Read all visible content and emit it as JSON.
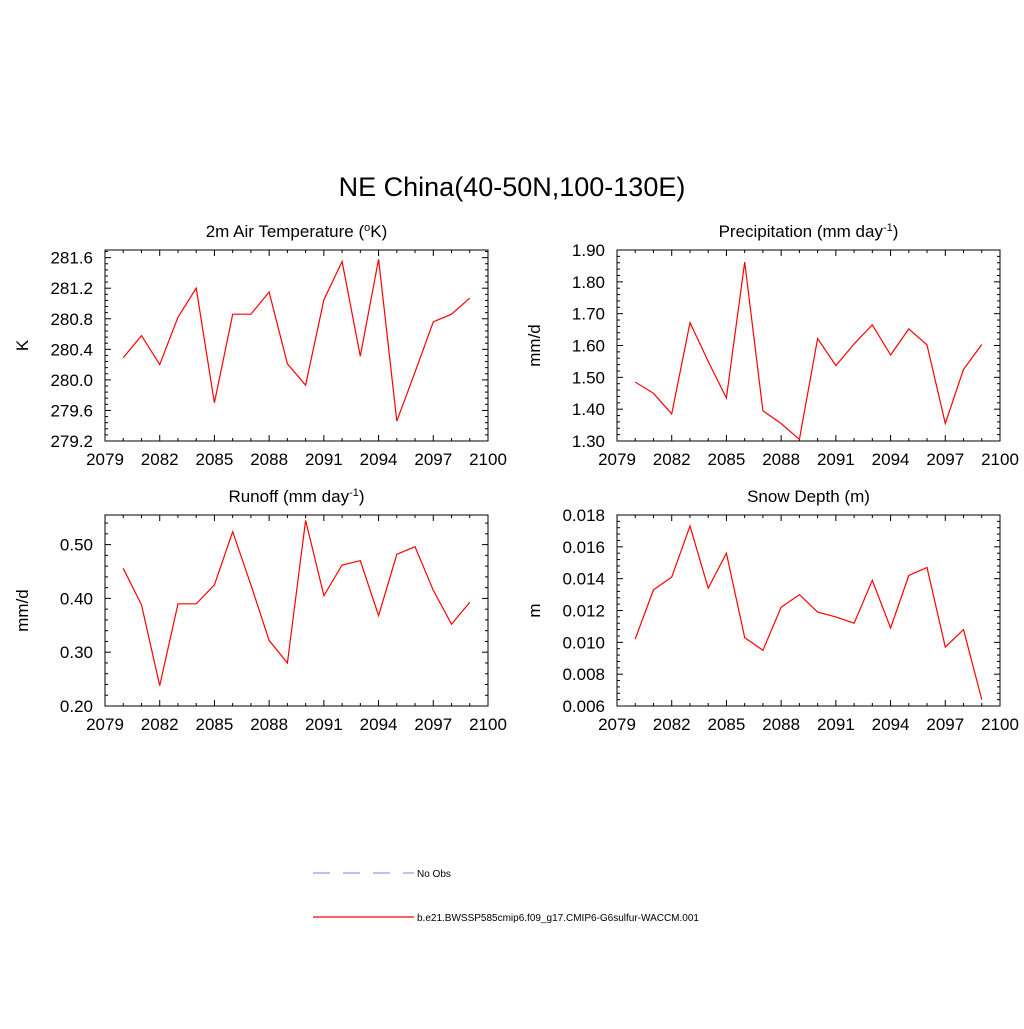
{
  "page_title": "NE China(40-50N,100-130E)",
  "colors": {
    "model_line": "#ff0000",
    "obs_line": "#9999ee",
    "axis": "#000000"
  },
  "legend": {
    "obs_label": "No Obs",
    "model_label": "b.e21.BWSSP585cmip6.f09_g17.CMIP6-G6sulfur-WACCM.001"
  },
  "chart_data": [
    {
      "type": "line",
      "title": "2m Air Temperature (",
      "title_sup": "o",
      "title_tail": "K)",
      "ylabel": "K",
      "xlim": [
        2079,
        2100
      ],
      "ylim": [
        279.2,
        281.7
      ],
      "xticks": [
        2079,
        2082,
        2085,
        2088,
        2091,
        2094,
        2097,
        2100
      ],
      "yticks": [
        "279.2",
        "279.6",
        "280.0",
        "280.4",
        "280.8",
        "281.2",
        "281.6"
      ],
      "x": [
        2080,
        2081,
        2082,
        2083,
        2084,
        2085,
        2086,
        2087,
        2088,
        2089,
        2090,
        2091,
        2092,
        2093,
        2094,
        2095,
        2096,
        2097,
        2098,
        2099
      ],
      "values": [
        280.29,
        280.58,
        280.2,
        280.82,
        281.2,
        279.7,
        280.86,
        280.86,
        281.15,
        280.21,
        279.93,
        281.05,
        281.55,
        280.31,
        281.58,
        279.46,
        280.1,
        280.76,
        280.86,
        281.07
      ]
    },
    {
      "type": "line",
      "title": "Precipitation (mm day",
      "title_sup": "-1",
      "title_tail": ")",
      "ylabel": "mm/d",
      "xlim": [
        2079,
        2100
      ],
      "ylim": [
        1.3,
        1.9
      ],
      "xticks": [
        2079,
        2082,
        2085,
        2088,
        2091,
        2094,
        2097,
        2100
      ],
      "yticks": [
        "1.30",
        "1.40",
        "1.50",
        "1.60",
        "1.70",
        "1.80",
        "1.90"
      ],
      "x": [
        2080,
        2081,
        2082,
        2083,
        2084,
        2085,
        2086,
        2087,
        2088,
        2089,
        2090,
        2091,
        2092,
        2093,
        2094,
        2095,
        2096,
        2097,
        2098,
        2099
      ],
      "values": [
        1.485,
        1.45,
        1.385,
        1.672,
        1.55,
        1.435,
        1.862,
        1.395,
        1.355,
        1.305,
        1.622,
        1.537,
        1.605,
        1.665,
        1.57,
        1.652,
        1.602,
        1.355,
        1.525,
        1.603
      ]
    },
    {
      "type": "line",
      "title": "Runoff (mm day",
      "title_sup": "-1",
      "title_tail": ")",
      "ylabel": "mm/d",
      "xlim": [
        2079,
        2100
      ],
      "ylim": [
        0.2,
        0.555
      ],
      "xticks": [
        2079,
        2082,
        2085,
        2088,
        2091,
        2094,
        2097,
        2100
      ],
      "yticks": [
        "0.20",
        "0.30",
        "0.40",
        "0.50"
      ],
      "x": [
        2080,
        2081,
        2082,
        2083,
        2084,
        2085,
        2086,
        2087,
        2088,
        2089,
        2090,
        2091,
        2092,
        2093,
        2094,
        2095,
        2096,
        2097,
        2098,
        2099
      ],
      "values": [
        0.456,
        0.388,
        0.238,
        0.39,
        0.39,
        0.425,
        0.524,
        0.425,
        0.322,
        0.28,
        0.545,
        0.405,
        0.462,
        0.47,
        0.368,
        0.482,
        0.496,
        0.415,
        0.352,
        0.393
      ]
    },
    {
      "type": "line",
      "title": "Snow Depth (m)",
      "title_sup": "",
      "title_tail": "",
      "ylabel": "m",
      "xlim": [
        2079,
        2100
      ],
      "ylim": [
        0.006,
        0.018
      ],
      "xticks": [
        2079,
        2082,
        2085,
        2088,
        2091,
        2094,
        2097,
        2100
      ],
      "yticks": [
        "0.006",
        "0.008",
        "0.010",
        "0.012",
        "0.014",
        "0.016",
        "0.018"
      ],
      "x": [
        2080,
        2081,
        2082,
        2083,
        2084,
        2085,
        2086,
        2087,
        2088,
        2089,
        2090,
        2091,
        2092,
        2093,
        2094,
        2095,
        2096,
        2097,
        2098,
        2099
      ],
      "values": [
        0.0102,
        0.0133,
        0.0141,
        0.0173,
        0.0134,
        0.0156,
        0.0103,
        0.0095,
        0.0122,
        0.013,
        0.0119,
        0.0116,
        0.0112,
        0.0139,
        0.0109,
        0.0142,
        0.0147,
        0.0097,
        0.0108,
        0.0064
      ]
    }
  ]
}
